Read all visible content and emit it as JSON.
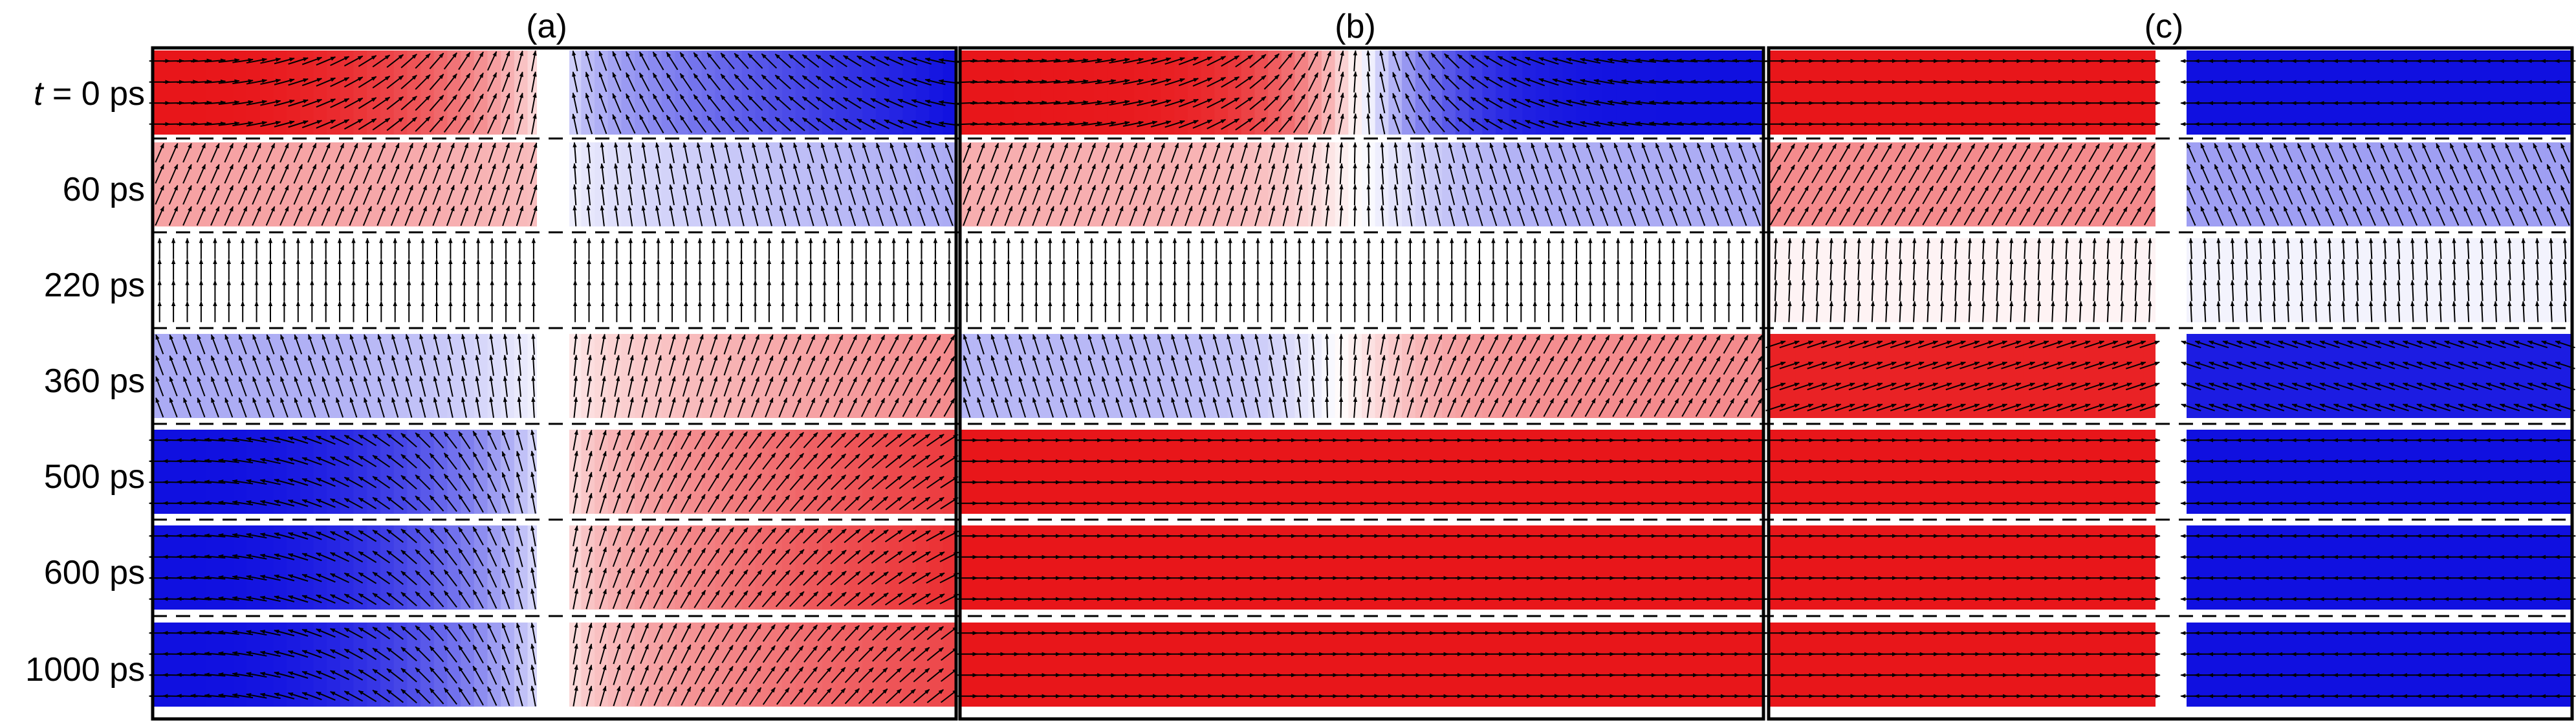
{
  "panels": [
    {
      "label": "(a)"
    },
    {
      "label": "(b)"
    },
    {
      "label": "(c)"
    }
  ],
  "times": [
    {
      "prefix": "t",
      "value": " = 0 ps"
    },
    {
      "prefix": "",
      "value": "60 ps"
    },
    {
      "prefix": "",
      "value": "220 ps"
    },
    {
      "prefix": "",
      "value": "360 ps"
    },
    {
      "prefix": "",
      "value": "500 ps"
    },
    {
      "prefix": "",
      "value": "600 ps"
    },
    {
      "prefix": "",
      "value": "1000 ps"
    }
  ],
  "colors": {
    "red": "#e8161a",
    "blue": "#1010e0",
    "white": "#ffffff",
    "arrow": "#000000",
    "frame": "#000000"
  },
  "mz_profiles": {
    "a": [
      {
        "left": 1.0,
        "right": -1.0,
        "leftGrad": true,
        "rightGrad": true,
        "step": 0.0
      },
      {
        "left": 0.4,
        "right": -0.35,
        "leftGrad": false,
        "rightGrad": true,
        "step": 0.0
      },
      {
        "left": 0.0,
        "right": 0.0,
        "leftGrad": false,
        "rightGrad": false,
        "step": 0.0
      },
      {
        "left": -0.35,
        "right": 0.5,
        "leftGrad": true,
        "rightGrad": true,
        "step": 0.0
      },
      {
        "left": -1.0,
        "right": 0.85,
        "leftGrad": true,
        "rightGrad": true,
        "step": 0.3
      },
      {
        "left": -1.0,
        "right": 0.9,
        "leftGrad": true,
        "rightGrad": true,
        "step": 0.0
      },
      {
        "left": -1.0,
        "right": 0.8,
        "leftGrad": true,
        "rightGrad": true,
        "step": 0.0
      }
    ],
    "b": [
      {
        "left": 1.0,
        "right": -1.0,
        "type": "wall"
      },
      {
        "left": 0.35,
        "right": -0.35,
        "type": "wall"
      },
      {
        "left": 0.0,
        "right": 0.0,
        "type": "flat"
      },
      {
        "left": -0.3,
        "right": 0.5,
        "type": "wall"
      },
      {
        "left": 1.0,
        "right": 1.0,
        "type": "flat"
      },
      {
        "left": 1.0,
        "right": 1.0,
        "type": "flat"
      },
      {
        "left": 1.0,
        "right": 1.0,
        "type": "flat"
      }
    ],
    "c": [
      {
        "left": 1.0,
        "right": -1.0
      },
      {
        "left": 0.5,
        "right": -0.4
      },
      {
        "left": 0.05,
        "right": -0.05
      },
      {
        "left": 0.95,
        "right": -0.95
      },
      {
        "left": 1.0,
        "right": -1.0
      },
      {
        "left": 1.0,
        "right": -1.0
      },
      {
        "left": 1.0,
        "right": -1.0
      }
    ]
  }
}
